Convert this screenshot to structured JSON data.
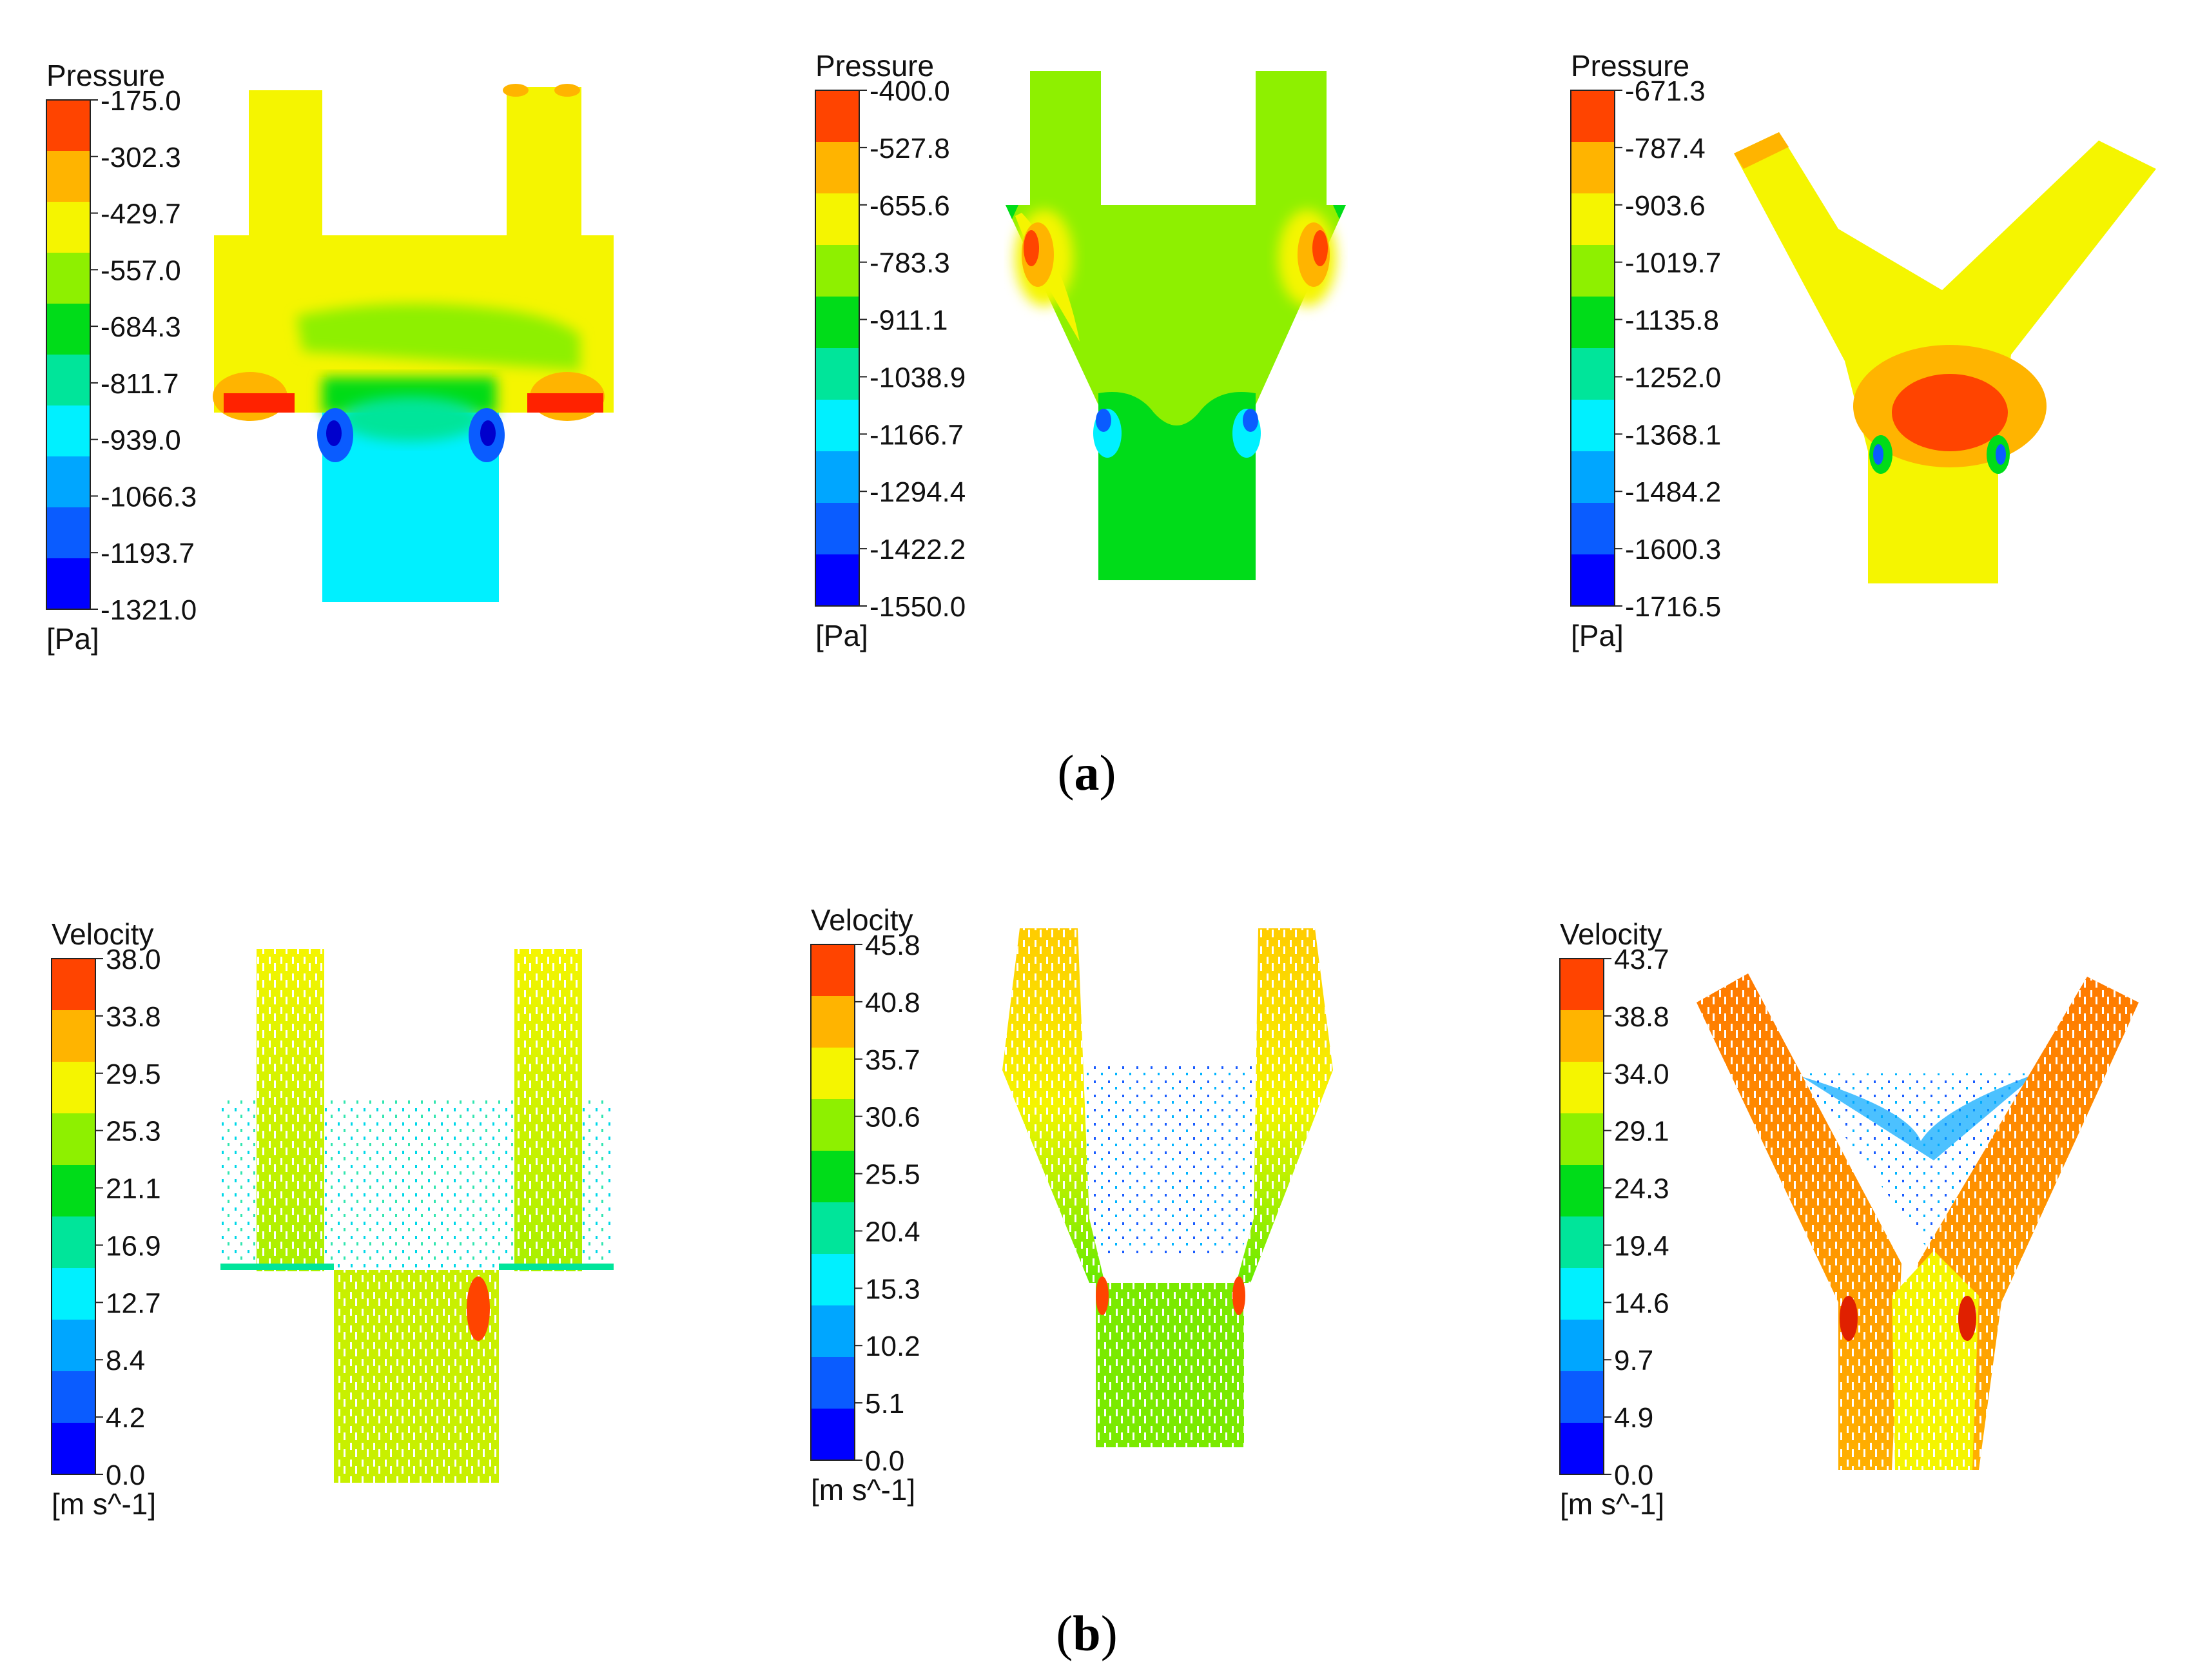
{
  "caption_a": "a",
  "caption_b": "b",
  "colors": {
    "scale": [
      "#0000ff",
      "#0a5cff",
      "#00a6ff",
      "#00f0ff",
      "#00e59a",
      "#00dc19",
      "#8ef000",
      "#f5f500",
      "#ffb400",
      "#ff4400"
    ],
    "white": "#ffffff"
  },
  "panels_a": [
    {
      "legend_title": "Pressure",
      "unit": "[Pa]",
      "ticks": [
        "-175.0",
        "-302.3",
        "-429.7",
        "-557.0",
        "-684.3",
        "-811.7",
        "-939.0",
        "-1066.3",
        "-1193.7",
        "-1321.0"
      ],
      "geometry_icon": "t-junction"
    },
    {
      "legend_title": "Pressure",
      "unit": "[Pa]",
      "ticks": [
        "-400.0",
        "-527.8",
        "-655.6",
        "-783.3",
        "-911.1",
        "-1038.9",
        "-1166.7",
        "-1294.4",
        "-1422.2",
        "-1550.0"
      ],
      "geometry_icon": "tapered-junction"
    },
    {
      "legend_title": "Pressure",
      "unit": "[Pa]",
      "ticks": [
        "-671.3",
        "-787.4",
        "-903.6",
        "-1019.7",
        "-1135.8",
        "-1252.0",
        "-1368.1",
        "-1484.2",
        "-1600.3",
        "-1716.5"
      ],
      "geometry_icon": "y-junction"
    }
  ],
  "panels_b": [
    {
      "legend_title": "Velocity",
      "unit": "[m s^-1]",
      "ticks": [
        "38.0",
        "33.8",
        "29.5",
        "25.3",
        "21.1",
        "16.9",
        "12.7",
        "8.4",
        "4.2",
        "0.0"
      ],
      "geometry_icon": "t-junction"
    },
    {
      "legend_title": "Velocity",
      "unit": "[m s^-1]",
      "ticks": [
        "45.8",
        "40.8",
        "35.7",
        "30.6",
        "25.5",
        "20.4",
        "15.3",
        "10.2",
        "5.1",
        "0.0"
      ],
      "geometry_icon": "tapered-junction"
    },
    {
      "legend_title": "Velocity",
      "unit": "[m s^-1]",
      "ticks": [
        "43.7",
        "38.8",
        "34.0",
        "29.1",
        "24.3",
        "19.4",
        "14.6",
        "9.7",
        "4.9",
        "0.0"
      ],
      "geometry_icon": "y-junction"
    }
  ]
}
